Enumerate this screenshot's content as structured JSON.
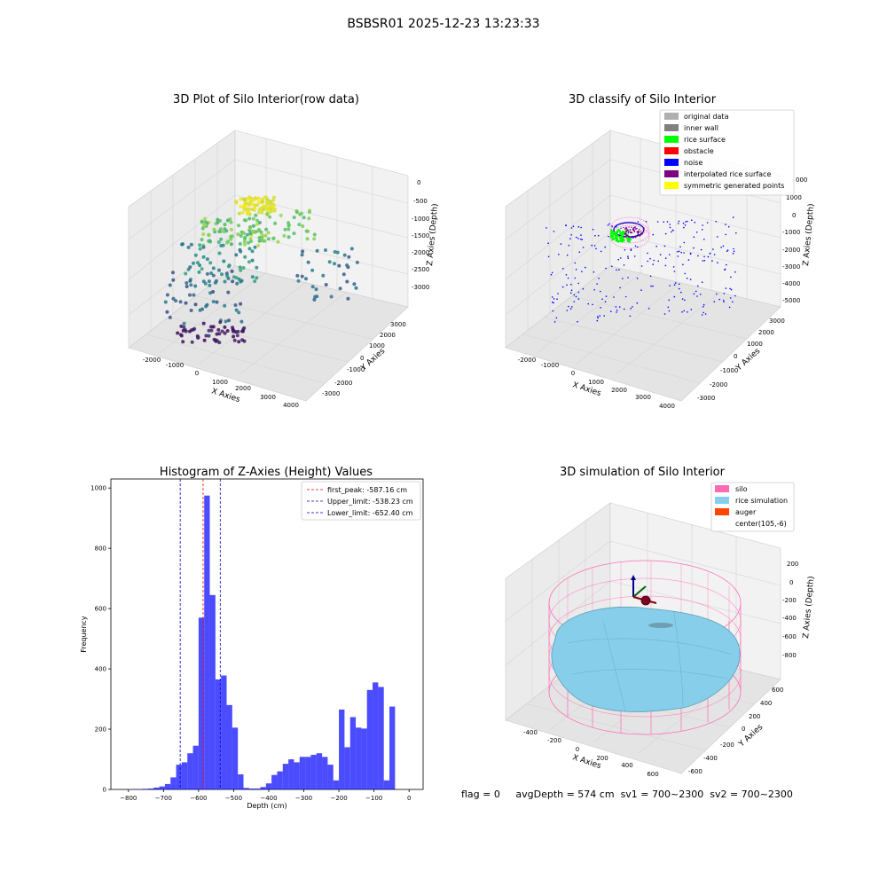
{
  "title": "BSBSR01 2025-12-23 13:23:33",
  "status": {
    "flag": "flag = 0",
    "avg_depth": "avgDepth = 574 cm",
    "sv1": "sv1 = 700~2300",
    "sv2": "sv2 = 700~2300"
  },
  "chart_data": [
    {
      "type": "scatter",
      "projection": "3d",
      "title": "3D Plot of Silo Interior(row data)",
      "xlabel": "X Axies",
      "ylabel": "Y Axies",
      "zlabel": "Z Axies (Depth)",
      "xticks": [
        "-2000",
        "-1000",
        "0",
        "1000",
        "2000",
        "3000",
        "4000"
      ],
      "yticks": [
        "-3000",
        "-2000",
        "-1000",
        "0",
        "1000",
        "2000",
        "3000"
      ],
      "zticks": [
        "0",
        "-500",
        "-1000",
        "-1500",
        "-2000",
        "-2500",
        "-3000"
      ],
      "xlim": [
        -2500,
        4200
      ],
      "ylim": [
        -3500,
        3500
      ],
      "zlim": [
        -3500,
        0
      ],
      "colormap": "viridis (by depth)",
      "grid": true
    },
    {
      "type": "scatter",
      "projection": "3d",
      "title": "3D classify of Silo Interior",
      "xlabel": "X Axies",
      "ylabel": "Y Axies",
      "zlabel": "Z Axies (Depth)",
      "xticks": [
        "-2000",
        "-1000",
        "0",
        "1000",
        "2000",
        "3000",
        "4000"
      ],
      "yticks": [
        "-3000",
        "-2000",
        "-1000",
        "0",
        "1000",
        "2000",
        "3000"
      ],
      "zticks": [
        "1000",
        "0",
        "-1000",
        "-2000",
        "-3000",
        "-4000",
        "-5000"
      ],
      "ztick_top_partial": "000",
      "legend_position": "top-right",
      "legend": [
        {
          "label": "original data",
          "color": "#b0b0b0"
        },
        {
          "label": "inner wall",
          "color": "#808080"
        },
        {
          "label": "rice surface",
          "color": "#00ff00"
        },
        {
          "label": "obstacle",
          "color": "#ff0000"
        },
        {
          "label": "noise",
          "color": "#0000ff"
        },
        {
          "label": "interpolated rice surface",
          "color": "#800080"
        },
        {
          "label": "symmetric generated points",
          "color": "#ffff00"
        }
      ],
      "grid": true
    },
    {
      "type": "bar",
      "title": "Histogram of Z-Axies (Height) Values",
      "xlabel": "Depth (cm)",
      "ylabel": "Frequency",
      "xlim": [
        -850,
        40
      ],
      "ylim": [
        0,
        1030
      ],
      "xticks": [
        -800,
        -700,
        -600,
        -500,
        -400,
        -300,
        -200,
        -100,
        0
      ],
      "xtick_labels": [
        "−800",
        "−700",
        "−600",
        "−500",
        "−400",
        "−300",
        "−200",
        "−100",
        "0"
      ],
      "yticks": [
        0,
        200,
        400,
        600,
        800,
        1000
      ],
      "bin_width": 16,
      "bins_left": [
        -792,
        -776,
        -760,
        -744,
        -728,
        -712,
        -696,
        -680,
        -664,
        -648,
        -632,
        -616,
        -600,
        -584,
        -568,
        -552,
        -536,
        -520,
        -504,
        -488,
        -472,
        -456,
        -440,
        -424,
        -408,
        -392,
        -376,
        -360,
        -344,
        -328,
        -312,
        -296,
        -280,
        -264,
        -248,
        -232,
        -216,
        -200,
        -184,
        -168,
        -152,
        -136,
        -120,
        -104,
        -88,
        -72,
        -56,
        -40,
        -24,
        -8
      ],
      "counts": [
        1,
        1,
        2,
        3,
        6,
        10,
        18,
        40,
        82,
        90,
        120,
        145,
        570,
        975,
        645,
        365,
        378,
        280,
        205,
        50,
        5,
        3,
        3,
        8,
        20,
        48,
        60,
        85,
        100,
        90,
        108,
        108,
        115,
        120,
        108,
        82,
        30,
        265,
        140,
        240,
        205,
        202,
        330,
        355,
        340,
        30,
        275,
        0,
        0,
        0
      ],
      "bar_color": "#0000ff",
      "bar_alpha": 0.7,
      "lines": [
        {
          "name": "first_peak: -587.16 cm",
          "x": -587.16,
          "color": "#ff0000"
        },
        {
          "name": "Upper_limit: -538.23 cm",
          "x": -538.23,
          "color": "#0000cc"
        },
        {
          "name": "Lower_limit: -652.40 cm",
          "x": -652.4,
          "color": "#0000cc"
        }
      ],
      "legend_position": "top-right",
      "grid": false
    },
    {
      "type": "surface",
      "projection": "3d",
      "title": "3D simulation of Silo Interior",
      "xlabel": "X Axies",
      "ylabel": "Y Axies",
      "zlabel": "Z Axies (Depth)",
      "xticks": [
        "-400",
        "-200",
        "0",
        "200",
        "400",
        "600"
      ],
      "yticks": [
        "-600",
        "-400",
        "-200",
        "0",
        "200",
        "400",
        "600"
      ],
      "zticks": [
        "200",
        "0",
        "-200",
        "-400",
        "-600",
        "-800"
      ],
      "legend_position": "top-right",
      "legend": [
        {
          "label": "silo",
          "color": "#ff69b4"
        },
        {
          "label": "rice simulation",
          "color": "#87ceeb"
        },
        {
          "label": "auger",
          "color": "#ff4500"
        },
        {
          "label": "center(105,-6)",
          "color": ""
        }
      ],
      "grid": true
    }
  ]
}
